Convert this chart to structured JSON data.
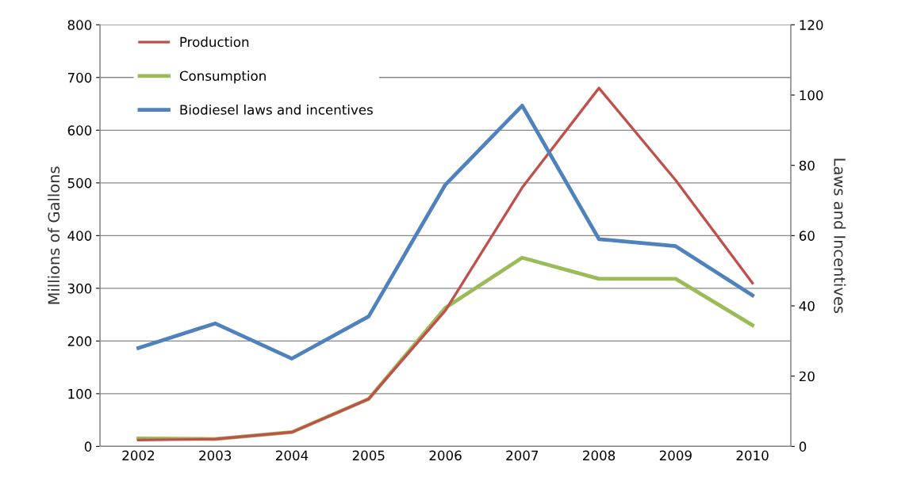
{
  "chart_data": {
    "type": "line",
    "ylabel": "Millions of Gallons",
    "y2label": "Laws and Incentives",
    "categories": [
      "2002",
      "2003",
      "2004",
      "2005",
      "2006",
      "2007",
      "2008",
      "2009",
      "2010"
    ],
    "series": [
      {
        "name": "Production",
        "color": "#c0504d",
        "values": [
          12,
          14,
          27,
          90,
          258,
          491,
          680,
          505,
          310
        ]
      },
      {
        "name": "Consumption",
        "color": "#9bbb59",
        "values": [
          15,
          14,
          27,
          90,
          263,
          358,
          318,
          318,
          230
        ]
      },
      {
        "name": "Biodiesel laws and incentives",
        "color": "#4f81bd",
        "axis": "y2",
        "values": [
          28,
          35,
          25,
          37,
          74.5,
          97,
          59,
          57,
          43
        ]
      }
    ],
    "ylim": [
      0,
      800
    ],
    "yticks": [
      0,
      100,
      200,
      300,
      400,
      500,
      600,
      700,
      800
    ],
    "y2lim": [
      0,
      120
    ],
    "y2ticks": [
      0,
      20,
      40,
      60,
      80,
      100,
      120
    ],
    "grid": "y",
    "legend": "top left",
    "marker": "none",
    "line_style": "solid"
  }
}
